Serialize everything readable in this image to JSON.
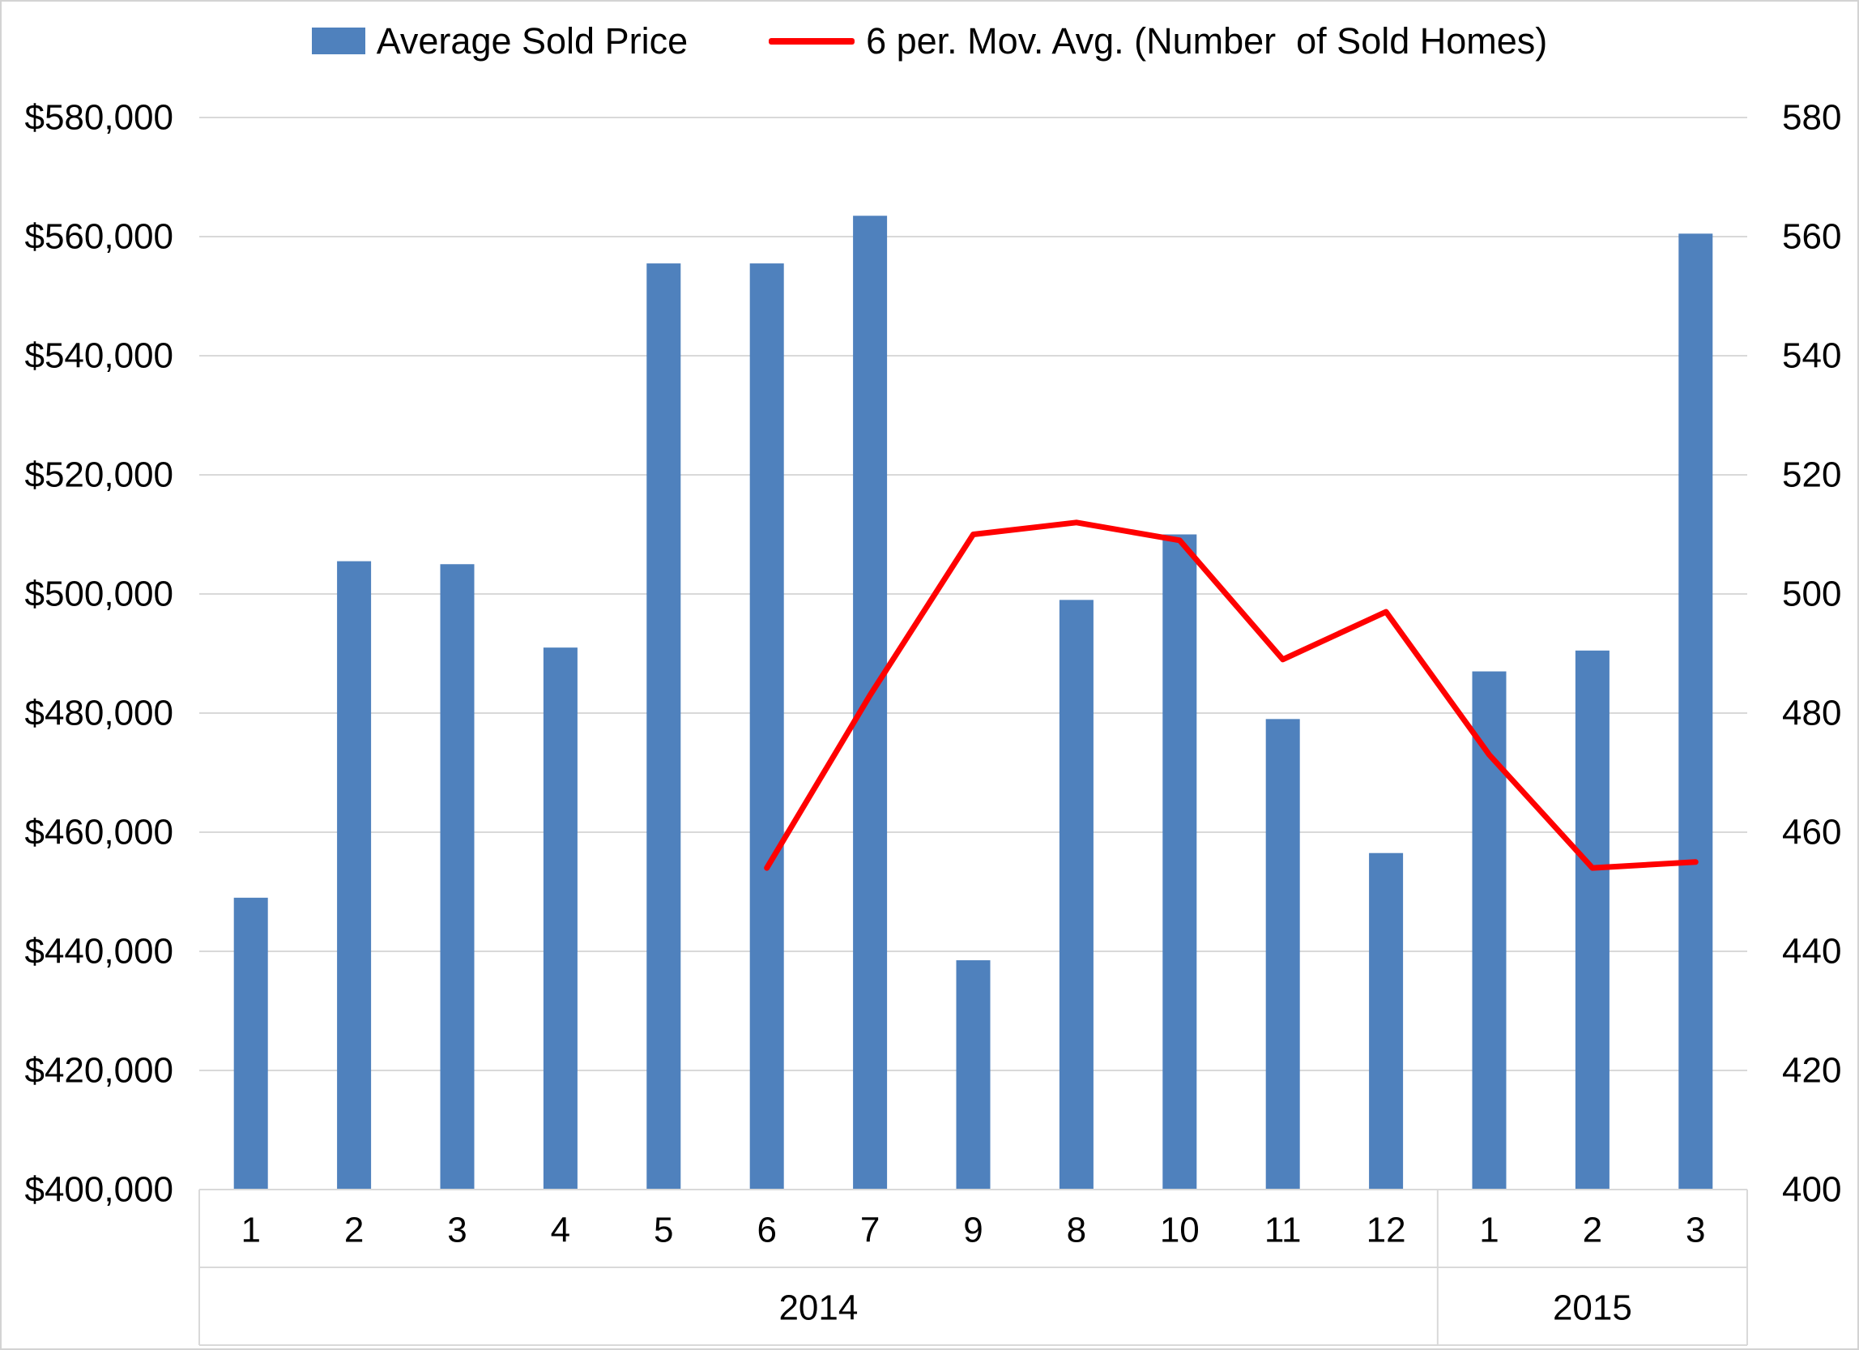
{
  "legend": {
    "bar_label": "Average Sold Price",
    "line_label": "6 per. Mov. Avg. (Number  of Sold Homes)"
  },
  "colors": {
    "bar": "#4F81BD",
    "line": "#FF0000",
    "gridline": "#D9D9D9",
    "axis_table_border": "#D9D9D9",
    "text": "#000000"
  },
  "chart_data": {
    "type": "bar",
    "title": "",
    "legend_position": "top",
    "grid": true,
    "categories": [
      "1",
      "2",
      "3",
      "4",
      "5",
      "6",
      "7",
      "9",
      "8",
      "10",
      "11",
      "12",
      "1",
      "2",
      "3"
    ],
    "year_groups": [
      {
        "label": "2014",
        "span": 12
      },
      {
        "label": "2015",
        "span": 3
      }
    ],
    "series": [
      {
        "name": "Average Sold Price",
        "type": "bar",
        "axis": "left",
        "values": [
          449000,
          505500,
          505000,
          491000,
          555500,
          555500,
          563500,
          438500,
          499000,
          510000,
          479000,
          456500,
          487000,
          490500,
          560500
        ]
      },
      {
        "name": "6 per. Mov. Avg. (Number  of Sold Homes)",
        "type": "line",
        "axis": "right",
        "values": [
          null,
          null,
          null,
          null,
          null,
          454,
          483,
          510,
          512,
          509,
          489,
          497,
          473,
          454,
          455
        ]
      }
    ],
    "left_axis": {
      "min": 400000,
      "max": 580000,
      "step": 20000,
      "tick_labels": [
        "$400,000",
        "$420,000",
        "$440,000",
        "$460,000",
        "$480,000",
        "$500,000",
        "$520,000",
        "$540,000",
        "$560,000",
        "$580,000"
      ]
    },
    "right_axis": {
      "min": 400,
      "max": 580,
      "step": 20,
      "tick_labels": [
        "400",
        "420",
        "440",
        "460",
        "480",
        "500",
        "520",
        "540",
        "560",
        "580"
      ]
    }
  }
}
